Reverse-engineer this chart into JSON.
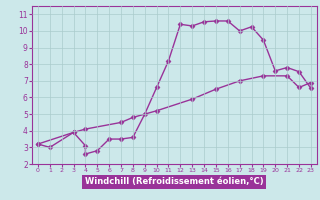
{
  "xlabel": "Windchill (Refroidissement éolien,°C)",
  "xlim": [
    -0.5,
    23.5
  ],
  "ylim": [
    2,
    11.5
  ],
  "yticks": [
    2,
    3,
    4,
    5,
    6,
    7,
    8,
    9,
    10,
    11
  ],
  "xticks": [
    0,
    1,
    2,
    3,
    4,
    5,
    6,
    7,
    8,
    9,
    10,
    11,
    12,
    13,
    14,
    15,
    16,
    17,
    18,
    19,
    20,
    21,
    22,
    23
  ],
  "bg_color": "#cce8ea",
  "line_color": "#993399",
  "grid_color": "#aacccc",
  "xlabel_bg": "#993399",
  "xlabel_fg": "#ffffff",
  "curve1_x": [
    0,
    1,
    3,
    4,
    4,
    5,
    6,
    7,
    8,
    9,
    10,
    11,
    12,
    13,
    14,
    15,
    16,
    17,
    18,
    19,
    20,
    21,
    22,
    23
  ],
  "curve1_y": [
    3.2,
    3.0,
    3.9,
    3.1,
    2.6,
    2.8,
    3.5,
    3.5,
    3.6,
    5.0,
    6.6,
    8.2,
    10.4,
    10.3,
    10.55,
    10.6,
    10.6,
    10.0,
    10.25,
    9.45,
    7.6,
    7.8,
    7.55,
    6.55
  ],
  "curve2_x": [
    0,
    3,
    4,
    7,
    8,
    10,
    13,
    15,
    17,
    19,
    21,
    22,
    23
  ],
  "curve2_y": [
    3.2,
    3.9,
    4.1,
    4.5,
    4.8,
    5.2,
    5.9,
    6.5,
    7.0,
    7.3,
    7.3,
    6.6,
    6.9
  ],
  "marker": "D",
  "markersize": 2.5,
  "linewidth": 1.0
}
